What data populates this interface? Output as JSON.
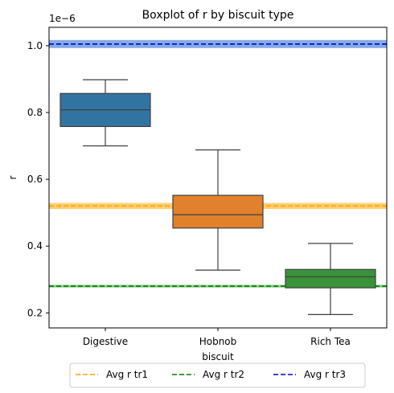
{
  "chart_data": {
    "type": "boxplot",
    "title": "Boxplot of r by biscuit type",
    "xlabel": "biscuit",
    "ylabel": "r",
    "y_offset_label": "1e−6",
    "ylim": [
      0.155,
      1.055
    ],
    "yticks": [
      0.2,
      0.4,
      0.6,
      0.8,
      1.0
    ],
    "ytick_labels": [
      "0.2",
      "0.4",
      "0.6",
      "0.8",
      "1.0"
    ],
    "categories": [
      "Digestive",
      "Hobnob",
      "Rich Tea"
    ],
    "boxes": [
      {
        "category": "Digestive",
        "whisker_low": 0.7,
        "q1": 0.758,
        "median": 0.808,
        "q3": 0.857,
        "whisker_high": 0.898,
        "color": "#3274a1"
      },
      {
        "category": "Hobnob",
        "whisker_low": 0.328,
        "q1": 0.454,
        "median": 0.494,
        "q3": 0.552,
        "whisker_high": 0.688,
        "color": "#e1812c"
      },
      {
        "category": "Rich Tea",
        "whisker_low": 0.195,
        "q1": 0.275,
        "median": 0.308,
        "q3": 0.33,
        "whisker_high": 0.408,
        "color": "#3a923a"
      }
    ],
    "reference_lines": [
      {
        "name": "Avg r tr1",
        "value": 0.52,
        "band": [
          0.511,
          0.529
        ],
        "line_color": "#ffa500",
        "band_color": "#ffa500"
      },
      {
        "name": "Avg r tr2",
        "value": 0.28,
        "band": [
          0.276,
          0.284
        ],
        "line_color": "#008000",
        "band_color": "#2ca02c"
      },
      {
        "name": "Avg r tr3",
        "value": 1.005,
        "band": [
          0.993,
          1.017
        ],
        "line_color": "#0000cd",
        "band_color": "#1f66d0"
      }
    ],
    "legend": {
      "position": "bottom-center",
      "entries": [
        "Avg r tr1",
        "Avg r tr2",
        "Avg r tr3"
      ]
    },
    "grid": false
  }
}
